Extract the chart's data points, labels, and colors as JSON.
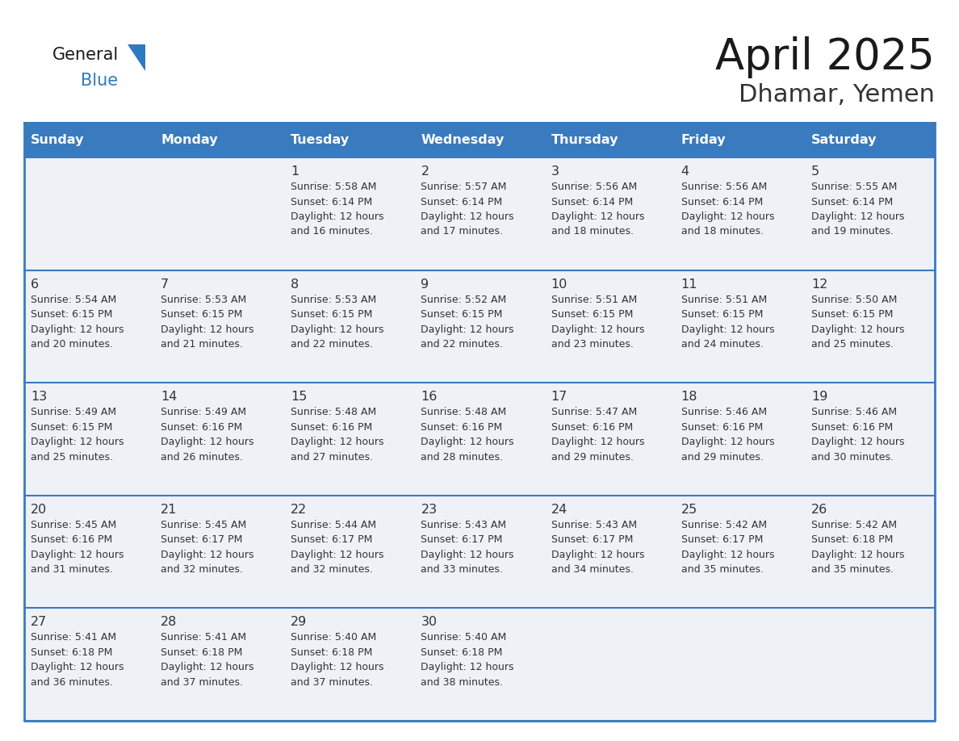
{
  "title": "April 2025",
  "subtitle": "Dhamar, Yemen",
  "header_bg": "#3a7abf",
  "header_text_color": "#ffffff",
  "cell_bg": "#eef2f7",
  "cell_bg_empty": "#eef2f7",
  "border_color": "#3a7abf",
  "row_divider_color": "#3a7abf",
  "cell_border_color": "#cccccc",
  "day_names": [
    "Sunday",
    "Monday",
    "Tuesday",
    "Wednesday",
    "Thursday",
    "Friday",
    "Saturday"
  ],
  "title_color": "#1a1a1a",
  "subtitle_color": "#333333",
  "text_color": "#333333",
  "logo_general_color": "#1a1a1a",
  "logo_blue_color": "#2e7abf",
  "logo_triangle_color": "#2e7abf",
  "days": [
    {
      "col": 0,
      "row": 0,
      "num": "",
      "sunrise": "",
      "sunset": "",
      "daylight_suffix": ""
    },
    {
      "col": 1,
      "row": 0,
      "num": "",
      "sunrise": "",
      "sunset": "",
      "daylight_suffix": ""
    },
    {
      "col": 2,
      "row": 0,
      "num": "1",
      "sunrise": "5:58 AM",
      "sunset": "6:14 PM",
      "daylight_suffix": "16 minutes."
    },
    {
      "col": 3,
      "row": 0,
      "num": "2",
      "sunrise": "5:57 AM",
      "sunset": "6:14 PM",
      "daylight_suffix": "17 minutes."
    },
    {
      "col": 4,
      "row": 0,
      "num": "3",
      "sunrise": "5:56 AM",
      "sunset": "6:14 PM",
      "daylight_suffix": "18 minutes."
    },
    {
      "col": 5,
      "row": 0,
      "num": "4",
      "sunrise": "5:56 AM",
      "sunset": "6:14 PM",
      "daylight_suffix": "18 minutes."
    },
    {
      "col": 6,
      "row": 0,
      "num": "5",
      "sunrise": "5:55 AM",
      "sunset": "6:14 PM",
      "daylight_suffix": "19 minutes."
    },
    {
      "col": 0,
      "row": 1,
      "num": "6",
      "sunrise": "5:54 AM",
      "sunset": "6:15 PM",
      "daylight_suffix": "20 minutes."
    },
    {
      "col": 1,
      "row": 1,
      "num": "7",
      "sunrise": "5:53 AM",
      "sunset": "6:15 PM",
      "daylight_suffix": "21 minutes."
    },
    {
      "col": 2,
      "row": 1,
      "num": "8",
      "sunrise": "5:53 AM",
      "sunset": "6:15 PM",
      "daylight_suffix": "22 minutes."
    },
    {
      "col": 3,
      "row": 1,
      "num": "9",
      "sunrise": "5:52 AM",
      "sunset": "6:15 PM",
      "daylight_suffix": "22 minutes."
    },
    {
      "col": 4,
      "row": 1,
      "num": "10",
      "sunrise": "5:51 AM",
      "sunset": "6:15 PM",
      "daylight_suffix": "23 minutes."
    },
    {
      "col": 5,
      "row": 1,
      "num": "11",
      "sunrise": "5:51 AM",
      "sunset": "6:15 PM",
      "daylight_suffix": "24 minutes."
    },
    {
      "col": 6,
      "row": 1,
      "num": "12",
      "sunrise": "5:50 AM",
      "sunset": "6:15 PM",
      "daylight_suffix": "25 minutes."
    },
    {
      "col": 0,
      "row": 2,
      "num": "13",
      "sunrise": "5:49 AM",
      "sunset": "6:15 PM",
      "daylight_suffix": "25 minutes."
    },
    {
      "col": 1,
      "row": 2,
      "num": "14",
      "sunrise": "5:49 AM",
      "sunset": "6:16 PM",
      "daylight_suffix": "26 minutes."
    },
    {
      "col": 2,
      "row": 2,
      "num": "15",
      "sunrise": "5:48 AM",
      "sunset": "6:16 PM",
      "daylight_suffix": "27 minutes."
    },
    {
      "col": 3,
      "row": 2,
      "num": "16",
      "sunrise": "5:48 AM",
      "sunset": "6:16 PM",
      "daylight_suffix": "28 minutes."
    },
    {
      "col": 4,
      "row": 2,
      "num": "17",
      "sunrise": "5:47 AM",
      "sunset": "6:16 PM",
      "daylight_suffix": "29 minutes."
    },
    {
      "col": 5,
      "row": 2,
      "num": "18",
      "sunrise": "5:46 AM",
      "sunset": "6:16 PM",
      "daylight_suffix": "29 minutes."
    },
    {
      "col": 6,
      "row": 2,
      "num": "19",
      "sunrise": "5:46 AM",
      "sunset": "6:16 PM",
      "daylight_suffix": "30 minutes."
    },
    {
      "col": 0,
      "row": 3,
      "num": "20",
      "sunrise": "5:45 AM",
      "sunset": "6:16 PM",
      "daylight_suffix": "31 minutes."
    },
    {
      "col": 1,
      "row": 3,
      "num": "21",
      "sunrise": "5:45 AM",
      "sunset": "6:17 PM",
      "daylight_suffix": "32 minutes."
    },
    {
      "col": 2,
      "row": 3,
      "num": "22",
      "sunrise": "5:44 AM",
      "sunset": "6:17 PM",
      "daylight_suffix": "32 minutes."
    },
    {
      "col": 3,
      "row": 3,
      "num": "23",
      "sunrise": "5:43 AM",
      "sunset": "6:17 PM",
      "daylight_suffix": "33 minutes."
    },
    {
      "col": 4,
      "row": 3,
      "num": "24",
      "sunrise": "5:43 AM",
      "sunset": "6:17 PM",
      "daylight_suffix": "34 minutes."
    },
    {
      "col": 5,
      "row": 3,
      "num": "25",
      "sunrise": "5:42 AM",
      "sunset": "6:17 PM",
      "daylight_suffix": "35 minutes."
    },
    {
      "col": 6,
      "row": 3,
      "num": "26",
      "sunrise": "5:42 AM",
      "sunset": "6:18 PM",
      "daylight_suffix": "35 minutes."
    },
    {
      "col": 0,
      "row": 4,
      "num": "27",
      "sunrise": "5:41 AM",
      "sunset": "6:18 PM",
      "daylight_suffix": "36 minutes."
    },
    {
      "col": 1,
      "row": 4,
      "num": "28",
      "sunrise": "5:41 AM",
      "sunset": "6:18 PM",
      "daylight_suffix": "37 minutes."
    },
    {
      "col": 2,
      "row": 4,
      "num": "29",
      "sunrise": "5:40 AM",
      "sunset": "6:18 PM",
      "daylight_suffix": "37 minutes."
    },
    {
      "col": 3,
      "row": 4,
      "num": "30",
      "sunrise": "5:40 AM",
      "sunset": "6:18 PM",
      "daylight_suffix": "38 minutes."
    },
    {
      "col": 4,
      "row": 4,
      "num": "",
      "sunrise": "",
      "sunset": "",
      "daylight_suffix": ""
    },
    {
      "col": 5,
      "row": 4,
      "num": "",
      "sunrise": "",
      "sunset": "",
      "daylight_suffix": ""
    },
    {
      "col": 6,
      "row": 4,
      "num": "",
      "sunrise": "",
      "sunset": "",
      "daylight_suffix": ""
    }
  ]
}
